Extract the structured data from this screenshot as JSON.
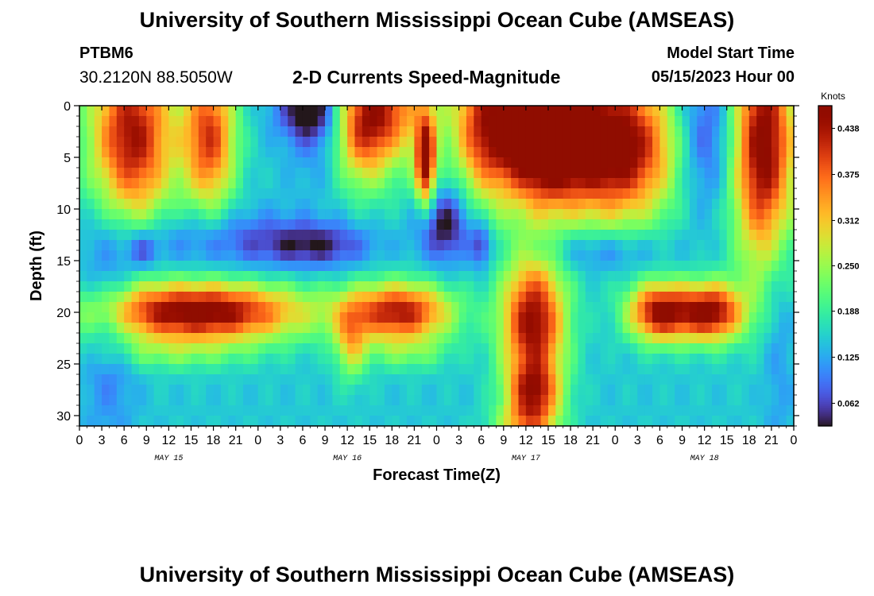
{
  "header": {
    "title": "University of Southern Mississippi Ocean Cube (AMSEAS)",
    "station_id": "PTBM6",
    "station_coords": "30.2120N  88.5050W",
    "plot_title": "2-D Currents Speed-Magnitude",
    "model_start_label": "Model Start Time",
    "model_start_time": "05/15/2023 Hour 00"
  },
  "footer": {
    "title": "University of Southern Mississippi Ocean Cube (AMSEAS)"
  },
  "chart_data": {
    "type": "heatmap",
    "xlabel": "Forecast Time(Z)",
    "ylabel": "Depth (ft)",
    "x_range_hours": [
      0,
      96
    ],
    "ylim": [
      0,
      31
    ],
    "y_inverted": true,
    "x_tick_labels": [
      "0",
      "3",
      "6",
      "9",
      "12",
      "15",
      "18",
      "21",
      "0",
      "3",
      "6",
      "9",
      "12",
      "15",
      "18",
      "21",
      "0",
      "3",
      "6",
      "9",
      "12",
      "15",
      "18",
      "21",
      "0",
      "3",
      "6",
      "9",
      "12",
      "15",
      "18",
      "21",
      "0"
    ],
    "y_ticks": [
      0,
      5,
      10,
      15,
      20,
      25,
      30
    ],
    "y_tick_labels": [
      "0",
      "5",
      "10",
      "15",
      "20",
      "25",
      "30"
    ],
    "date_labels": [
      {
        "hour": 12,
        "text": "MAY 15"
      },
      {
        "hour": 36,
        "text": "MAY 16"
      },
      {
        "hour": 60,
        "text": "MAY 17"
      },
      {
        "hour": 84,
        "text": "MAY 18"
      }
    ],
    "colorbar": {
      "title": "Knots",
      "range": [
        0.031,
        0.469
      ],
      "ticks": [
        0.062,
        0.125,
        0.188,
        0.25,
        0.312,
        0.375,
        0.438
      ],
      "tick_labels": [
        "0.062",
        "0.125",
        "0.188",
        "0.250",
        "0.312",
        "0.375",
        "0.438"
      ],
      "colormap": "turbo"
    },
    "grid": false,
    "features": [
      {
        "t": 7,
        "d": 3,
        "st": 4,
        "sd": 6,
        "v": 0.3
      },
      {
        "t": 17.5,
        "d": 3,
        "st": 2.5,
        "sd": 5,
        "v": 0.25
      },
      {
        "t": 31,
        "d": 0.5,
        "st": 3,
        "sd": 2,
        "v": -0.14
      },
      {
        "t": 33,
        "d": 4,
        "st": 3,
        "sd": 3,
        "v": -0.05
      },
      {
        "t": 38,
        "d": 2,
        "st": 3,
        "sd": 4,
        "v": 0.25
      },
      {
        "t": 42,
        "d": 0,
        "st": 3,
        "sd": 3,
        "v": 0.13
      },
      {
        "t": 46.5,
        "d": 5.5,
        "st": 0.9,
        "sd": 3,
        "v": 0.28
      },
      {
        "t": 50,
        "d": 3,
        "st": 2,
        "sd": 5,
        "v": -0.09
      },
      {
        "t": 57,
        "d": 2,
        "st": 7,
        "sd": 5,
        "v": 0.33
      },
      {
        "t": 63,
        "d": 4,
        "st": 3,
        "sd": 4,
        "v": 0.14
      },
      {
        "t": 72,
        "d": 4,
        "st": 6,
        "sd": 5,
        "v": 0.33
      },
      {
        "t": 84,
        "d": 3,
        "st": 3,
        "sd": 5,
        "v": -0.11
      },
      {
        "t": 92,
        "d": 4,
        "st": 3,
        "sd": 8,
        "v": 0.33
      },
      {
        "t": 19,
        "d": 13,
        "st": 10,
        "sd": 2,
        "v": -0.07
      },
      {
        "t": 8.5,
        "d": 14,
        "st": 1.5,
        "sd": 1.3,
        "v": -0.08
      },
      {
        "t": 32,
        "d": 13.5,
        "st": 5,
        "sd": 1.5,
        "v": -0.09
      },
      {
        "t": 49,
        "d": 11.5,
        "st": 2.5,
        "sd": 2.5,
        "v": -0.13
      },
      {
        "t": 54,
        "d": 13.5,
        "st": 1,
        "sd": 1.5,
        "v": -0.1
      },
      {
        "t": 70,
        "d": 14,
        "st": 6,
        "sd": 1.5,
        "v": -0.07
      },
      {
        "t": 16,
        "d": 20,
        "st": 10,
        "sd": 2,
        "v": 0.33
      },
      {
        "t": 43,
        "d": 20,
        "st": 5,
        "sd": 2,
        "v": 0.28
      },
      {
        "t": 36.5,
        "d": 23,
        "st": 1.5,
        "sd": 2.5,
        "v": 0.13
      },
      {
        "t": 61,
        "d": 21,
        "st": 3,
        "sd": 4.5,
        "v": 0.31
      },
      {
        "t": 61,
        "d": 28,
        "st": 2.5,
        "sd": 2,
        "v": 0.22
      },
      {
        "t": 78,
        "d": 20,
        "st": 3,
        "sd": 2,
        "v": 0.3
      },
      {
        "t": 85,
        "d": 20,
        "st": 3,
        "sd": 2,
        "v": 0.3
      },
      {
        "t": 12,
        "d": 24,
        "st": 8,
        "sd": 1.2,
        "v": 0.06
      },
      {
        "t": 44,
        "d": 24,
        "st": 4,
        "sd": 1.2,
        "v": 0.06
      },
      {
        "t": 4,
        "d": 20,
        "st": 2.5,
        "sd": 9,
        "v": -0.06
      },
      {
        "t": 94,
        "d": 20,
        "st": 1.5,
        "sd": 10,
        "v": -0.04
      },
      {
        "t": 60,
        "d": 30.5,
        "st": 3,
        "sd": 1,
        "v": 0.12
      }
    ]
  }
}
